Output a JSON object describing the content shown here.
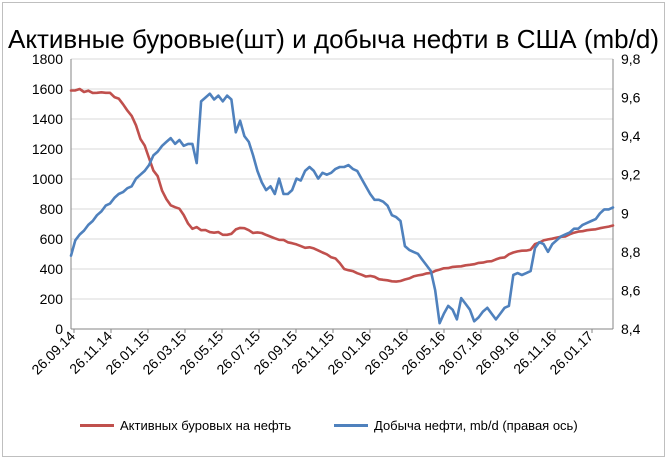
{
  "chart_data": {
    "type": "line",
    "title": "Активные буровые(шт) и добыча нефти в США (mb/d)",
    "x_tick_labels": [
      "26.09.14",
      "26.11.14",
      "26.01.15",
      "26.03.15",
      "26.05.15",
      "26.07.15",
      "26.09.15",
      "26.11.15",
      "26.01.16",
      "26.03.16",
      "26.05.16",
      "26.07.16",
      "26.09.16",
      "26.11.16",
      "26.01.17"
    ],
    "y_left": {
      "ticks": [
        0,
        200,
        400,
        600,
        800,
        1000,
        1200,
        1400,
        1600,
        1800
      ],
      "ylim": [
        0,
        1800
      ]
    },
    "y_right": {
      "ticks": [
        "8,4",
        "8,6",
        "8,8",
        "9",
        "9,2",
        "9,4",
        "9,6",
        "9,8"
      ],
      "ylim": [
        8.4,
        9.8
      ]
    },
    "grid": "horizontal",
    "legend_position": "bottom",
    "series": [
      {
        "name": "Активных буровых на нефть",
        "axis": "left",
        "color": "#c0504d",
        "x_week": [
          0,
          1,
          2,
          3,
          4,
          5,
          6,
          7,
          8,
          9,
          10,
          11,
          12,
          13,
          14,
          15,
          16,
          17,
          18,
          19,
          20,
          21,
          22,
          23,
          24,
          25,
          26,
          27,
          28,
          29,
          30,
          31,
          32,
          33,
          34,
          35,
          36,
          37,
          38,
          39,
          40,
          41,
          42,
          43,
          44,
          45,
          46,
          47,
          48,
          49,
          50,
          51,
          52,
          53,
          54,
          55,
          56,
          57,
          58,
          59,
          60,
          61,
          62,
          63,
          64,
          65,
          66,
          67,
          68,
          69,
          70,
          71,
          72,
          73,
          74,
          75,
          76,
          77,
          78,
          79,
          80,
          81,
          82,
          83,
          84,
          85,
          86,
          87,
          88,
          89,
          90,
          91,
          92,
          93,
          94,
          95,
          96,
          97,
          98,
          99,
          100,
          101,
          102,
          103,
          104,
          105,
          106,
          107,
          108,
          109,
          110,
          111,
          112,
          113,
          114,
          115,
          116,
          117,
          118,
          119,
          120,
          121,
          122,
          123,
          124,
          125
        ],
        "values": [
          1590,
          1591,
          1600,
          1580,
          1589,
          1574,
          1575,
          1578,
          1575,
          1575,
          1546,
          1536,
          1499,
          1456,
          1421,
          1358,
          1267,
          1223,
          1140,
          1056,
          1019,
          922,
          866,
          825,
          812,
          802,
          760,
          703,
          668,
          679,
          659,
          660,
          646,
          642,
          646,
          628,
          628,
          635,
          664,
          674,
          672,
          659,
          640,
          644,
          640,
          627,
          616,
          605,
          595,
          594,
          578,
          572,
          564,
          553,
          541,
          545,
          537,
          524,
          510,
          498,
          478,
          470,
          439,
          400,
          392,
          386,
          372,
          362,
          350,
          354,
          348,
          332,
          328,
          325,
          318,
          316,
          320,
          330,
          337,
          351,
          357,
          362,
          371,
          374,
          387,
          396,
          405,
          406,
          414,
          416,
          418,
          425,
          428,
          432,
          441,
          443,
          450,
          452,
          464,
          474,
          477,
          498,
          510,
          517,
          522,
          523,
          529,
          566,
          576,
          591,
          597,
          602,
          609,
          615,
          617,
          631,
          642,
          649,
          652,
          659,
          662,
          665,
          672,
          677,
          683,
          690
        ]
      },
      {
        "name": "Добыча нефти, mb/d (правая ось)",
        "axis": "right",
        "color": "#4f81bd",
        "x_week": [
          0,
          1,
          2,
          3,
          4,
          5,
          6,
          7,
          8,
          9,
          10,
          11,
          12,
          13,
          14,
          15,
          16,
          17,
          18,
          19,
          20,
          21,
          22,
          23,
          24,
          25,
          26,
          27,
          28,
          29,
          30,
          31,
          32,
          33,
          34,
          35,
          36,
          37,
          38,
          39,
          40,
          41,
          42,
          43,
          44,
          45,
          46,
          47,
          48,
          49,
          50,
          51,
          52,
          53,
          54,
          55,
          56,
          57,
          58,
          59,
          60,
          61,
          62,
          63,
          64,
          65,
          66,
          67,
          68,
          69,
          70,
          71,
          72,
          73,
          74,
          75,
          76,
          77,
          78,
          79,
          80,
          81,
          82,
          83,
          84,
          85,
          86,
          87,
          88,
          89,
          90,
          91,
          92,
          93,
          94,
          95,
          96,
          97,
          98,
          99,
          100,
          101,
          102,
          103,
          104,
          105,
          106,
          107,
          108,
          109,
          110,
          111,
          112,
          113,
          114,
          115,
          116,
          117,
          118,
          119,
          120,
          121,
          122,
          123,
          124,
          125
        ],
        "values": [
          8.78,
          8.86,
          8.89,
          8.91,
          8.94,
          8.96,
          8.99,
          9.01,
          9.04,
          9.05,
          9.08,
          9.1,
          9.11,
          9.13,
          9.14,
          9.18,
          9.2,
          9.22,
          9.25,
          9.3,
          9.32,
          9.35,
          9.37,
          9.39,
          9.36,
          9.38,
          9.35,
          9.36,
          9.36,
          9.26,
          9.58,
          9.6,
          9.62,
          9.59,
          9.61,
          9.58,
          9.61,
          9.59,
          9.42,
          9.48,
          9.4,
          9.37,
          9.3,
          9.22,
          9.16,
          9.12,
          9.14,
          9.1,
          9.18,
          9.1,
          9.1,
          9.12,
          9.18,
          9.17,
          9.22,
          9.24,
          9.22,
          9.18,
          9.21,
          9.2,
          9.21,
          9.23,
          9.24,
          9.24,
          9.25,
          9.23,
          9.22,
          9.18,
          9.14,
          9.1,
          9.07,
          9.07,
          9.06,
          9.04,
          8.99,
          8.98,
          8.96,
          8.83,
          8.81,
          8.8,
          8.79,
          8.76,
          8.73,
          8.7,
          8.6,
          8.43,
          8.48,
          8.52,
          8.5,
          8.45,
          8.56,
          8.53,
          8.5,
          8.44,
          8.46,
          8.49,
          8.51,
          8.48,
          8.45,
          8.48,
          8.51,
          8.52,
          8.68,
          8.69,
          8.68,
          8.69,
          8.7,
          8.82,
          8.85,
          8.84,
          8.8,
          8.84,
          8.86,
          8.88,
          8.89,
          8.9,
          8.92,
          8.92,
          8.94,
          8.95,
          8.96,
          8.97,
          9.0,
          9.02,
          9.02,
          9.03
        ]
      }
    ]
  }
}
